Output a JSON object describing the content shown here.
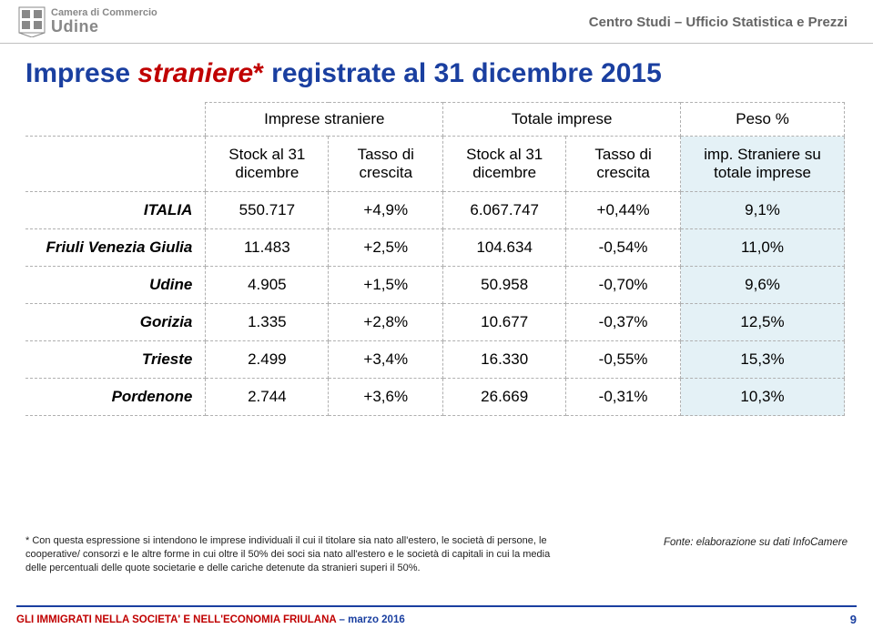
{
  "logo": {
    "top": "Camera di Commercio",
    "bottom": "Udine"
  },
  "header_right": "Centro Studi – Ufficio Statistica e Prezzi",
  "title_parts": {
    "a": "Imprese ",
    "b": "straniere",
    "ast": "*",
    "c": " registrate al 31 dicembre 2015"
  },
  "title_colors": {
    "blue": "#1a3fa0",
    "red": "#c00000"
  },
  "table": {
    "group_headers": [
      "Imprese straniere",
      "Totale imprese",
      "Peso %"
    ],
    "sub_headers": [
      "Stock al 31 dicembre",
      "Tasso di crescita",
      "Stock al 31 dicembre",
      "Tasso di crescita",
      "imp. Straniere su totale imprese"
    ],
    "peso_bg": "#e4f1f6",
    "rows": [
      {
        "label": "ITALIA",
        "c": [
          "550.717",
          "+4,9%",
          "6.067.747",
          "+0,44%",
          "9,1%"
        ]
      },
      {
        "label": "Friuli Venezia Giulia",
        "c": [
          "11.483",
          "+2,5%",
          "104.634",
          "-0,54%",
          "11,0%"
        ]
      },
      {
        "label": "Udine",
        "c": [
          "4.905",
          "+1,5%",
          "50.958",
          "-0,70%",
          "9,6%"
        ]
      },
      {
        "label": "Gorizia",
        "c": [
          "1.335",
          "+2,8%",
          "10.677",
          "-0,37%",
          "12,5%"
        ]
      },
      {
        "label": "Trieste",
        "c": [
          "2.499",
          "+3,4%",
          "16.330",
          "-0,55%",
          "15,3%"
        ]
      },
      {
        "label": "Pordenone",
        "c": [
          "2.744",
          "+3,6%",
          "26.669",
          "-0,31%",
          "10,3%"
        ]
      }
    ]
  },
  "footnote": "* Con questa espressione si intendono le imprese individuali il cui il titolare sia nato all'estero, le società di persone, le cooperative/ consorzi e le altre forme in cui oltre il 50% dei soci sia nato all'estero e le società di capitali in cui la media delle percentuali delle quote societarie e delle cariche detenute da stranieri superi il 50%.",
  "source": "Fonte: elaborazione su dati InfoCamere",
  "footer": {
    "text_a": "GLI IMMIGRATI NELLA SOCIETA' E NELL'ECONOMIA FRIULANA",
    "text_b": " – marzo 2016",
    "page": "9",
    "blue": "#1a3fa0",
    "red": "#c00000"
  }
}
